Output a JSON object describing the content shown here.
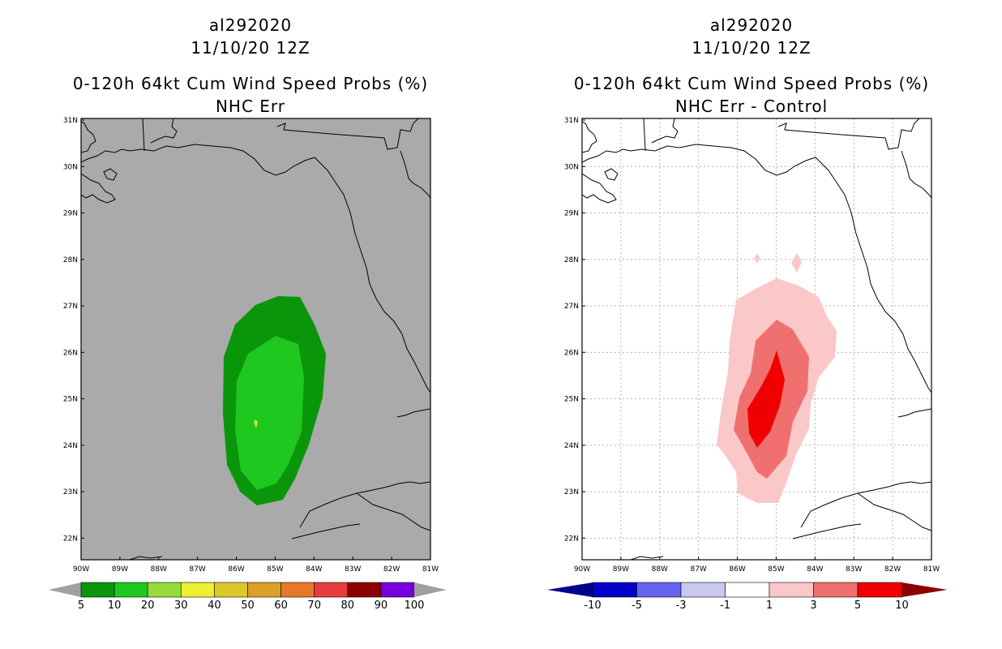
{
  "left_panel": {
    "storm_id": "al292020",
    "datetime": "11/10/20 12Z",
    "product": "0-120h 64kt Cum Wind Speed Probs (%)",
    "subtitle": "NHC Err",
    "colorbar": {
      "labels": [
        "5",
        "10",
        "20",
        "30",
        "40",
        "50",
        "60",
        "70",
        "80",
        "90",
        "100"
      ],
      "colors": [
        "#0a960a",
        "#1ec81e",
        "#96dc3c",
        "#f0f032",
        "#dcc828",
        "#dca028",
        "#e67828",
        "#e63c3c",
        "#8c0000",
        "#7800dc"
      ],
      "end_color": "#a0a0a0"
    }
  },
  "right_panel": {
    "storm_id": "al292020",
    "datetime": "11/10/20 12Z",
    "product": "0-120h 64kt Cum Wind Speed Probs (%)",
    "subtitle": "NHC Err - Control",
    "colorbar": {
      "labels": [
        "-10",
        "-5",
        "-3",
        "-1",
        "1",
        "3",
        "5",
        "10"
      ],
      "colors": [
        "#0000c8",
        "#6464f0",
        "#c8c8f0",
        "#ffffff",
        "#fac8c8",
        "#f07070",
        "#f00000"
      ],
      "end_left": "#00008c",
      "end_right": "#8c0000"
    }
  },
  "map": {
    "lat_labels": [
      "31N",
      "30N",
      "29N",
      "28N",
      "27N",
      "26N",
      "25N",
      "24N",
      "23N",
      "22N"
    ],
    "lon_labels": [
      "90W",
      "89W",
      "88W",
      "87W",
      "86W",
      "85W",
      "84W",
      "83W",
      "82W",
      "81W"
    ],
    "land_sea_color": "#aaaaaa",
    "prob_colors": {
      "p5": "#0a960a",
      "p10": "#1ec81e"
    },
    "diff_colors": {
      "d1": "#fac8c8",
      "d3": "#f07070",
      "d5": "#f00000"
    }
  }
}
